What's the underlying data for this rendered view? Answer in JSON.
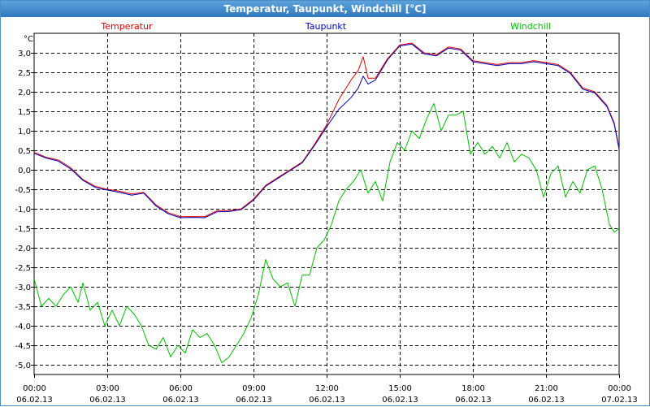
{
  "window": {
    "title": "Temperatur, Taupunkt, Windchill [°C]"
  },
  "chart_data": {
    "type": "line",
    "title": "Temperatur, Taupunkt, Windchill [°C]",
    "ylabel": "°C",
    "ylim": [
      -5.25,
      3.5
    ],
    "yticks": [
      3.0,
      2.5,
      2.0,
      1.5,
      1.0,
      0.5,
      0.0,
      -0.5,
      -1.0,
      -1.5,
      -2.0,
      -2.5,
      -3.0,
      -3.5,
      -4.0,
      -4.5,
      -5.0
    ],
    "ytick_labels": [
      "3,0",
      "2,5",
      "2,0",
      "1,5",
      "1,0",
      "0,5",
      "0,0",
      "-0,5",
      "-1,0",
      "-1,5",
      "-2,0",
      "-2,5",
      "-3,0",
      "-3,5",
      "-4,0",
      "-4,5",
      "-5,0"
    ],
    "xlim": [
      0,
      24
    ],
    "xticks": [
      0,
      3,
      6,
      9,
      12,
      15,
      18,
      21,
      24
    ],
    "xtick_times": [
      "00:00",
      "03:00",
      "06:00",
      "09:00",
      "12:00",
      "15:00",
      "18:00",
      "21:00",
      "00:00"
    ],
    "xtick_dates": [
      "06.02.13",
      "06.02.13",
      "06.02.13",
      "06.02.13",
      "06.02.13",
      "06.02.13",
      "06.02.13",
      "06.02.13",
      "07.02.13"
    ],
    "grid": true,
    "legend_position": "top",
    "series": [
      {
        "name": "Temperatur",
        "color": "#e00000",
        "points": [
          [
            0,
            0.45
          ],
          [
            0.5,
            0.32
          ],
          [
            1,
            0.25
          ],
          [
            1.5,
            0.05
          ],
          [
            2,
            -0.25
          ],
          [
            2.5,
            -0.42
          ],
          [
            3,
            -0.5
          ],
          [
            3.5,
            -0.55
          ],
          [
            4,
            -0.62
          ],
          [
            4.5,
            -0.58
          ],
          [
            5,
            -0.9
          ],
          [
            5.5,
            -1.1
          ],
          [
            6,
            -1.2
          ],
          [
            6.5,
            -1.2
          ],
          [
            7,
            -1.2
          ],
          [
            7.5,
            -1.05
          ],
          [
            8,
            -1.05
          ],
          [
            8.5,
            -1.0
          ],
          [
            9,
            -0.75
          ],
          [
            9.5,
            -0.4
          ],
          [
            10,
            -0.2
          ],
          [
            10.5,
            0.0
          ],
          [
            11,
            0.2
          ],
          [
            11.5,
            0.65
          ],
          [
            12,
            1.15
          ],
          [
            12.5,
            1.8
          ],
          [
            13,
            2.3
          ],
          [
            13.3,
            2.55
          ],
          [
            13.5,
            2.9
          ],
          [
            13.7,
            2.35
          ],
          [
            14,
            2.35
          ],
          [
            14.5,
            2.85
          ],
          [
            15,
            3.2
          ],
          [
            15.5,
            3.25
          ],
          [
            16,
            3.0
          ],
          [
            16.5,
            2.95
          ],
          [
            17,
            3.15
          ],
          [
            17.5,
            3.1
          ],
          [
            18,
            2.8
          ],
          [
            18.5,
            2.75
          ],
          [
            19,
            2.7
          ],
          [
            19.5,
            2.75
          ],
          [
            20,
            2.75
          ],
          [
            20.5,
            2.8
          ],
          [
            21,
            2.75
          ],
          [
            21.5,
            2.7
          ],
          [
            22,
            2.5
          ],
          [
            22.5,
            2.1
          ],
          [
            23,
            2.0
          ],
          [
            23.5,
            1.65
          ],
          [
            23.8,
            1.2
          ],
          [
            24,
            0.55
          ]
        ]
      },
      {
        "name": "Taupunkt",
        "color": "#0000c0",
        "points": [
          [
            0,
            0.42
          ],
          [
            0.5,
            0.3
          ],
          [
            1,
            0.22
          ],
          [
            1.5,
            0.02
          ],
          [
            2,
            -0.27
          ],
          [
            2.5,
            -0.45
          ],
          [
            3,
            -0.52
          ],
          [
            3.5,
            -0.58
          ],
          [
            4,
            -0.65
          ],
          [
            4.5,
            -0.6
          ],
          [
            5,
            -0.93
          ],
          [
            5.5,
            -1.13
          ],
          [
            6,
            -1.23
          ],
          [
            6.5,
            -1.22
          ],
          [
            7,
            -1.23
          ],
          [
            7.5,
            -1.08
          ],
          [
            8,
            -1.07
          ],
          [
            8.5,
            -1.02
          ],
          [
            9,
            -0.78
          ],
          [
            9.5,
            -0.42
          ],
          [
            10,
            -0.22
          ],
          [
            10.5,
            -0.02
          ],
          [
            11,
            0.18
          ],
          [
            11.5,
            0.62
          ],
          [
            12,
            1.1
          ],
          [
            12.5,
            1.55
          ],
          [
            13,
            1.85
          ],
          [
            13.3,
            2.1
          ],
          [
            13.5,
            2.4
          ],
          [
            13.7,
            2.2
          ],
          [
            14,
            2.3
          ],
          [
            14.5,
            2.82
          ],
          [
            15,
            3.18
          ],
          [
            15.5,
            3.22
          ],
          [
            16,
            2.97
          ],
          [
            16.5,
            2.92
          ],
          [
            17,
            3.12
          ],
          [
            17.5,
            3.07
          ],
          [
            18,
            2.77
          ],
          [
            18.5,
            2.72
          ],
          [
            19,
            2.67
          ],
          [
            19.5,
            2.72
          ],
          [
            20,
            2.72
          ],
          [
            20.5,
            2.77
          ],
          [
            21,
            2.72
          ],
          [
            21.5,
            2.67
          ],
          [
            22,
            2.47
          ],
          [
            22.5,
            2.07
          ],
          [
            23,
            1.97
          ],
          [
            23.5,
            1.62
          ],
          [
            23.8,
            1.17
          ],
          [
            24,
            0.52
          ]
        ]
      },
      {
        "name": "Windchill",
        "color": "#00c000",
        "points": [
          [
            0,
            -2.8
          ],
          [
            0.3,
            -3.5
          ],
          [
            0.6,
            -3.3
          ],
          [
            0.9,
            -3.5
          ],
          [
            1.2,
            -3.2
          ],
          [
            1.5,
            -3.0
          ],
          [
            1.8,
            -3.4
          ],
          [
            2.0,
            -2.9
          ],
          [
            2.3,
            -3.6
          ],
          [
            2.6,
            -3.4
          ],
          [
            2.9,
            -4.0
          ],
          [
            3.2,
            -3.6
          ],
          [
            3.5,
            -4.0
          ],
          [
            3.8,
            -3.5
          ],
          [
            4.1,
            -3.7
          ],
          [
            4.4,
            -4.0
          ],
          [
            4.7,
            -4.5
          ],
          [
            5.0,
            -4.6
          ],
          [
            5.3,
            -4.3
          ],
          [
            5.6,
            -4.8
          ],
          [
            5.9,
            -4.5
          ],
          [
            6.2,
            -4.7
          ],
          [
            6.5,
            -4.1
          ],
          [
            6.8,
            -4.3
          ],
          [
            7.1,
            -4.2
          ],
          [
            7.4,
            -4.5
          ],
          [
            7.7,
            -4.95
          ],
          [
            8.0,
            -4.8
          ],
          [
            8.3,
            -4.5
          ],
          [
            8.6,
            -4.2
          ],
          [
            8.9,
            -3.8
          ],
          [
            9.2,
            -3.2
          ],
          [
            9.5,
            -2.3
          ],
          [
            9.8,
            -2.8
          ],
          [
            10.1,
            -3.0
          ],
          [
            10.4,
            -2.9
          ],
          [
            10.7,
            -3.5
          ],
          [
            11.0,
            -2.7
          ],
          [
            11.3,
            -2.7
          ],
          [
            11.6,
            -2.0
          ],
          [
            11.9,
            -1.8
          ],
          [
            12.2,
            -1.4
          ],
          [
            12.5,
            -0.8
          ],
          [
            12.8,
            -0.5
          ],
          [
            13.1,
            -0.3
          ],
          [
            13.4,
            0.0
          ],
          [
            13.7,
            -0.6
          ],
          [
            14.0,
            -0.3
          ],
          [
            14.3,
            -0.8
          ],
          [
            14.6,
            0.2
          ],
          [
            14.9,
            0.7
          ],
          [
            15.2,
            0.5
          ],
          [
            15.5,
            1.0
          ],
          [
            15.8,
            0.8
          ],
          [
            16.1,
            1.3
          ],
          [
            16.4,
            1.7
          ],
          [
            16.7,
            1.0
          ],
          [
            17.0,
            1.4
          ],
          [
            17.3,
            1.4
          ],
          [
            17.6,
            1.5
          ],
          [
            17.9,
            0.4
          ],
          [
            18.2,
            0.7
          ],
          [
            18.5,
            0.4
          ],
          [
            18.8,
            0.6
          ],
          [
            19.1,
            0.3
          ],
          [
            19.4,
            0.7
          ],
          [
            19.7,
            0.2
          ],
          [
            20.0,
            0.4
          ],
          [
            20.3,
            0.3
          ],
          [
            20.6,
            0.0
          ],
          [
            20.9,
            -0.7
          ],
          [
            21.2,
            -0.1
          ],
          [
            21.5,
            0.1
          ],
          [
            21.8,
            -0.7
          ],
          [
            22.1,
            -0.3
          ],
          [
            22.4,
            -0.6
          ],
          [
            22.7,
            0.0
          ],
          [
            23.0,
            0.1
          ],
          [
            23.3,
            -0.5
          ],
          [
            23.6,
            -1.4
          ],
          [
            23.8,
            -1.6
          ],
          [
            24.0,
            -1.5
          ]
        ]
      }
    ]
  }
}
